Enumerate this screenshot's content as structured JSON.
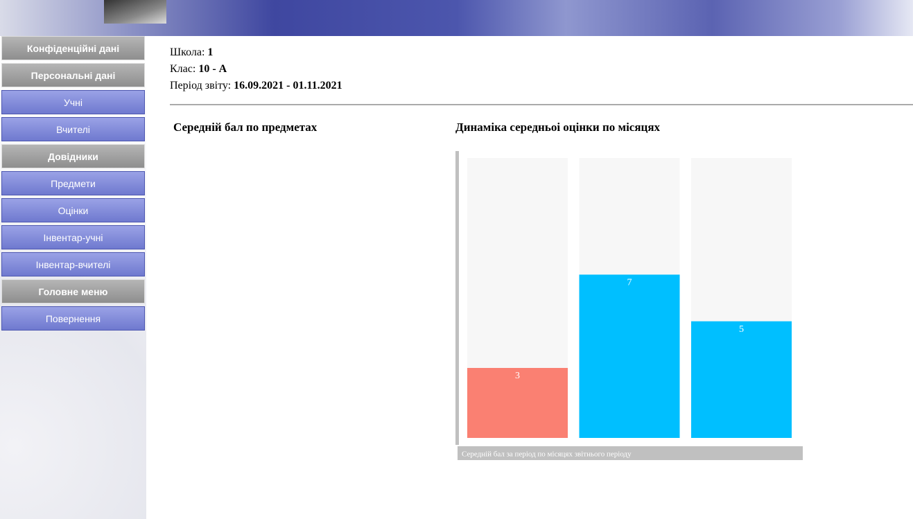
{
  "menu": [
    {
      "title": "Конфіденційні дані",
      "items": []
    },
    {
      "title": "Персональні дані",
      "items": [
        "Учні",
        "Вчителі"
      ]
    },
    {
      "title": "Довідники",
      "items": [
        "Предмети",
        "Оцінки",
        "Інвентар-учні",
        "Інвентар-вчителі"
      ]
    },
    {
      "title": "Головне меню",
      "items": [
        "Повернення"
      ]
    }
  ],
  "info": {
    "school": {
      "label": "Школа:",
      "value": "1"
    },
    "class": {
      "label": "Клас:",
      "value": "10 - А"
    },
    "period": {
      "label": "Період звіту:",
      "value": "16.09.2021 - 01.11.2021"
    }
  },
  "subjects_heading": "Середній бал по предметах",
  "chart_data": {
    "type": "bar",
    "title": "Динаміка середньоі оцінки по місяцях",
    "caption": "Середній бал за період по місяцях звітнього періоду",
    "values": [
      3,
      7,
      5
    ],
    "colors": [
      "#fa8072",
      "#00bfff",
      "#00bfff"
    ],
    "ylim": [
      0,
      12
    ]
  }
}
